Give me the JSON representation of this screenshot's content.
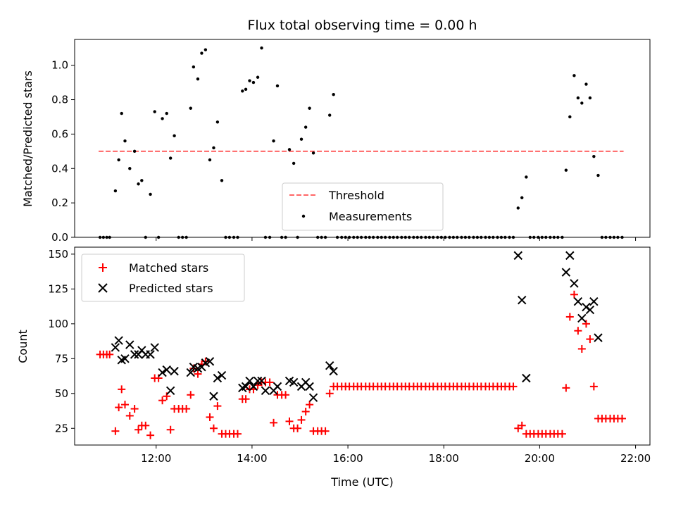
{
  "chart_data": [
    {
      "type": "scatter",
      "title": "Flux total observing time = 0.00 h",
      "xlabel": "",
      "ylabel": "Matched/Predicted stars",
      "xlim": [
        10.3,
        22.3
      ],
      "ylim": [
        0.0,
        1.15
      ],
      "yticks": [
        0.0,
        0.2,
        0.4,
        0.6,
        0.8,
        1.0
      ],
      "ytick_labels": [
        "0.0",
        "0.2",
        "0.4",
        "0.6",
        "0.8",
        "1.0"
      ],
      "legend": [
        "Threshold",
        "Measurements"
      ],
      "legend_position": "lower-center",
      "threshold": {
        "name": "Threshold",
        "value": 0.5,
        "x_range": [
          10.8,
          21.75
        ],
        "color": "#ff6666"
      },
      "series": [
        {
          "name": "Measurements",
          "color": "#000000",
          "x": [
            10.83,
            10.9,
            10.97,
            11.03,
            11.15,
            11.22,
            11.28,
            11.35,
            11.45,
            11.55,
            11.63,
            11.7,
            11.78,
            11.88,
            11.97,
            12.05,
            12.13,
            12.22,
            12.3,
            12.38,
            12.47,
            12.55,
            12.63,
            12.72,
            12.78,
            12.87,
            12.95,
            13.03,
            13.12,
            13.2,
            13.28,
            13.37,
            13.45,
            13.53,
            13.62,
            13.7,
            13.8,
            13.87,
            13.95,
            14.03,
            14.12,
            14.2,
            14.28,
            14.37,
            14.45,
            14.53,
            14.62,
            14.7,
            14.78,
            14.87,
            14.95,
            15.03,
            15.12,
            15.2,
            15.28,
            15.37,
            15.45,
            15.53,
            15.62,
            15.7,
            15.78,
            15.87,
            15.95,
            16.03,
            16.12,
            16.2,
            16.28,
            16.37,
            16.45,
            16.53,
            16.62,
            16.7,
            16.78,
            16.87,
            16.95,
            17.03,
            17.12,
            17.2,
            17.28,
            17.37,
            17.45,
            17.53,
            17.62,
            17.7,
            17.78,
            17.87,
            17.95,
            18.03,
            18.12,
            18.2,
            18.28,
            18.37,
            18.45,
            18.53,
            18.62,
            18.7,
            18.78,
            18.87,
            18.95,
            19.03,
            19.12,
            19.2,
            19.28,
            19.37,
            19.45,
            19.55,
            19.63,
            19.72,
            19.8,
            19.88,
            19.97,
            20.05,
            20.13,
            20.22,
            20.3,
            20.38,
            20.47,
            20.55,
            20.63,
            20.72,
            20.8,
            20.88,
            20.97,
            21.05,
            21.13,
            21.22,
            21.3,
            21.38,
            21.47,
            21.55,
            21.63,
            21.72
          ],
          "y": [
            0.0,
            0.0,
            0.0,
            0.0,
            0.27,
            0.45,
            0.72,
            0.56,
            0.4,
            0.5,
            0.31,
            0.33,
            0.0,
            0.25,
            0.73,
            0.0,
            0.69,
            0.72,
            0.46,
            0.59,
            0.0,
            0.0,
            0.0,
            0.75,
            0.99,
            0.92,
            1.07,
            1.09,
            0.45,
            0.52,
            0.67,
            0.33,
            0.0,
            0.0,
            0.0,
            0.0,
            0.85,
            0.86,
            0.91,
            0.9,
            0.93,
            1.1,
            0.0,
            0.0,
            0.56,
            0.88,
            0.0,
            0.0,
            0.51,
            0.43,
            0.0,
            0.57,
            0.64,
            0.75,
            0.49,
            0.0,
            0.0,
            0.0,
            0.71,
            0.83,
            0.0,
            0.0,
            0.0,
            0.0,
            0.0,
            0.0,
            0.0,
            0.0,
            0.0,
            0.0,
            0.0,
            0.0,
            0.0,
            0.0,
            0.0,
            0.0,
            0.0,
            0.0,
            0.0,
            0.0,
            0.0,
            0.0,
            0.0,
            0.0,
            0.0,
            0.0,
            0.0,
            0.0,
            0.0,
            0.0,
            0.0,
            0.0,
            0.0,
            0.0,
            0.0,
            0.0,
            0.0,
            0.0,
            0.0,
            0.0,
            0.0,
            0.0,
            0.0,
            0.0,
            0.0,
            0.17,
            0.23,
            0.35,
            0.0,
            0.0,
            0.0,
            0.0,
            0.0,
            0.0,
            0.0,
            0.0,
            0.0,
            0.39,
            0.7,
            0.94,
            0.81,
            0.78,
            0.89,
            0.81,
            0.47,
            0.36,
            0.0,
            0.0,
            0.0,
            0.0,
            0.0,
            0.0
          ]
        }
      ]
    },
    {
      "type": "scatter",
      "title": "",
      "xlabel": "Time (UTC)",
      "ylabel": "Count",
      "xlim": [
        10.3,
        22.3
      ],
      "ylim": [
        13,
        155
      ],
      "xticks": [
        12,
        14,
        16,
        18,
        20,
        22
      ],
      "xtick_labels": [
        "12:00",
        "14:00",
        "16:00",
        "18:00",
        "20:00",
        "22:00"
      ],
      "yticks": [
        25,
        50,
        75,
        100,
        125,
        150
      ],
      "ytick_labels": [
        "25",
        "50",
        "75",
        "100",
        "125",
        "150"
      ],
      "legend": [
        "Matched stars",
        "Predicted stars"
      ],
      "legend_position": "upper-left",
      "series": [
        {
          "name": "Matched stars",
          "marker": "plus",
          "color": "#ff0000",
          "x": [
            10.83,
            10.9,
            10.97,
            11.03,
            11.15,
            11.22,
            11.28,
            11.35,
            11.45,
            11.55,
            11.63,
            11.7,
            11.78,
            11.88,
            11.97,
            12.05,
            12.13,
            12.22,
            12.3,
            12.38,
            12.47,
            12.55,
            12.63,
            12.72,
            12.78,
            12.87,
            12.95,
            13.03,
            13.12,
            13.2,
            13.28,
            13.37,
            13.45,
            13.53,
            13.62,
            13.7,
            13.8,
            13.87,
            13.95,
            14.03,
            14.12,
            14.2,
            14.28,
            14.37,
            14.45,
            14.53,
            14.62,
            14.7,
            14.78,
            14.87,
            14.95,
            15.03,
            15.12,
            15.2,
            15.28,
            15.37,
            15.45,
            15.53,
            15.62,
            15.7,
            15.78,
            15.87,
            15.95,
            16.03,
            16.12,
            16.2,
            16.28,
            16.37,
            16.45,
            16.53,
            16.62,
            16.7,
            16.78,
            16.87,
            16.95,
            17.03,
            17.12,
            17.2,
            17.28,
            17.37,
            17.45,
            17.53,
            17.62,
            17.7,
            17.78,
            17.87,
            17.95,
            18.03,
            18.12,
            18.2,
            18.28,
            18.37,
            18.45,
            18.53,
            18.62,
            18.7,
            18.78,
            18.87,
            18.95,
            19.03,
            19.12,
            19.2,
            19.28,
            19.37,
            19.45,
            19.55,
            19.63,
            19.72,
            19.8,
            19.88,
            19.97,
            20.05,
            20.13,
            20.22,
            20.3,
            20.38,
            20.47,
            20.55,
            20.63,
            20.72,
            20.8,
            20.88,
            20.97,
            21.05,
            21.13,
            21.22,
            21.3,
            21.38,
            21.47,
            21.55,
            21.63,
            21.72
          ],
          "y": [
            78,
            78,
            78,
            78,
            23,
            40,
            53,
            42,
            34,
            39,
            24,
            27,
            27,
            20,
            61,
            61,
            45,
            48,
            24,
            39,
            39,
            39,
            39,
            49,
            68,
            64,
            71,
            73,
            33,
            25,
            41,
            21,
            21,
            21,
            21,
            21,
            46,
            46,
            53,
            53,
            56,
            58,
            58,
            58,
            29,
            49,
            49,
            49,
            30,
            25,
            25,
            31,
            37,
            42,
            23,
            23,
            23,
            23,
            50,
            55,
            55,
            55,
            55,
            55,
            55,
            55,
            55,
            55,
            55,
            55,
            55,
            55,
            55,
            55,
            55,
            55,
            55,
            55,
            55,
            55,
            55,
            55,
            55,
            55,
            55,
            55,
            55,
            55,
            55,
            55,
            55,
            55,
            55,
            55,
            55,
            55,
            55,
            55,
            55,
            55,
            55,
            55,
            55,
            55,
            55,
            25,
            27,
            21,
            21,
            21,
            21,
            21,
            21,
            21,
            21,
            21,
            21,
            54,
            105,
            121,
            95,
            82,
            100,
            89,
            55,
            32,
            32,
            32,
            32,
            32,
            32,
            32
          ]
        },
        {
          "name": "Predicted stars",
          "marker": "x",
          "color": "#000000",
          "x": [
            11.15,
            11.22,
            11.28,
            11.35,
            11.45,
            11.55,
            11.63,
            11.7,
            11.78,
            11.88,
            11.97,
            12.13,
            12.22,
            12.3,
            12.38,
            12.72,
            12.78,
            12.87,
            12.95,
            13.03,
            13.12,
            13.2,
            13.28,
            13.37,
            13.8,
            13.87,
            13.95,
            14.03,
            14.12,
            14.2,
            14.28,
            14.45,
            14.53,
            14.78,
            14.87,
            15.03,
            15.12,
            15.2,
            15.28,
            15.62,
            15.7,
            19.55,
            19.63,
            19.72,
            20.55,
            20.63,
            20.72,
            20.8,
            20.88,
            20.97,
            21.05,
            21.13,
            21.22
          ],
          "y": [
            83,
            88,
            74,
            75,
            85,
            78,
            78,
            81,
            78,
            78,
            83,
            65,
            67,
            52,
            66,
            65,
            69,
            68,
            69,
            72,
            73,
            48,
            61,
            63,
            54,
            55,
            59,
            55,
            59,
            59,
            52,
            52,
            55,
            59,
            58,
            55,
            58,
            55,
            47,
            70,
            66,
            149,
            117,
            61,
            137,
            149,
            129,
            116,
            104,
            112,
            110,
            116,
            90
          ]
        }
      ]
    }
  ]
}
